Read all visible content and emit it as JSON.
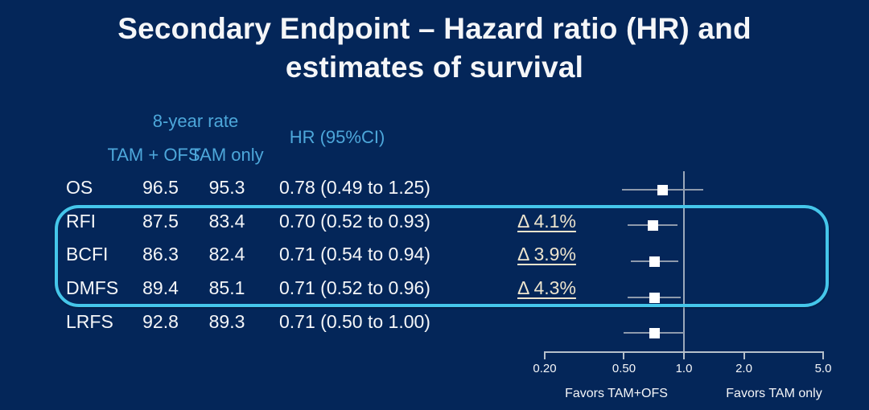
{
  "title": {
    "line1": "Secondary Endpoint – Hazard ratio (HR) and",
    "line2": "estimates of survival"
  },
  "colors": {
    "background": "#042659",
    "header_blue": "#4da7da",
    "delta_cream": "#ede4cd",
    "highlight_cyan": "#45c6ea",
    "text_white": "#f5f6f8",
    "ci_gray": "#8e9aac",
    "axis_gray": "#b6c0cb"
  },
  "table": {
    "group_header": "8-year rate",
    "col_header_1": "TAM + OFS",
    "col_header_2": "TAM only",
    "hr_header": "HR (95%CI)",
    "rows": [
      {
        "label": "OS",
        "tam_ofs": "96.5",
        "tam_only": "95.3",
        "hr": "0.78 (0.49 to 1.25)",
        "delta": ""
      },
      {
        "label": "RFI",
        "tam_ofs": "87.5",
        "tam_only": "83.4",
        "hr": "0.70 (0.52 to 0.93)",
        "delta": "Δ 4.1%"
      },
      {
        "label": "BCFI",
        "tam_ofs": "86.3",
        "tam_only": "82.4",
        "hr": "0.71 (0.54 to 0.94)",
        "delta": "Δ 3.9%"
      },
      {
        "label": "DMFS",
        "tam_ofs": "89.4",
        "tam_only": "85.1",
        "hr": "0.71 (0.52 to 0.96)",
        "delta": "Δ 4.3%"
      },
      {
        "label": "LRFS",
        "tam_ofs": "92.8",
        "tam_only": "89.3",
        "hr": "0.71 (0.50 to 1.00)",
        "delta": ""
      }
    ],
    "highlighted_rows": [
      "RFI",
      "BCFI",
      "DMFS"
    ]
  },
  "chart_data": {
    "type": "scatter",
    "subtype": "forest-plot",
    "title": "Hazard ratio (HR) and estimates of survival",
    "categories": [
      "OS",
      "RFI",
      "BCFI",
      "DMFS",
      "LRFS"
    ],
    "points": [
      {
        "endpoint": "OS",
        "hr": 0.78,
        "lo": 0.49,
        "hi": 1.25
      },
      {
        "endpoint": "RFI",
        "hr": 0.7,
        "lo": 0.52,
        "hi": 0.93
      },
      {
        "endpoint": "BCFI",
        "hr": 0.71,
        "lo": 0.54,
        "hi": 0.94
      },
      {
        "endpoint": "DMFS",
        "hr": 0.71,
        "lo": 0.52,
        "hi": 0.96
      },
      {
        "endpoint": "LRFS",
        "hr": 0.71,
        "lo": 0.5,
        "hi": 1.0
      }
    ],
    "x_axis": {
      "scale": "log",
      "reference_line": 1.0,
      "ticks": [
        {
          "v": 0.2,
          "label": "0.20"
        },
        {
          "v": 0.5,
          "label": "0.50"
        },
        {
          "v": 1.0,
          "label": "1.0"
        },
        {
          "v": 2.0,
          "label": "2.0"
        },
        {
          "v": 5.0,
          "label": "5.0"
        }
      ],
      "range": [
        0.2,
        5.0
      ]
    },
    "favors_left": "Favors TAM+OFS",
    "favors_right": "Favors TAM only",
    "legend_position": "none",
    "grid": false
  }
}
